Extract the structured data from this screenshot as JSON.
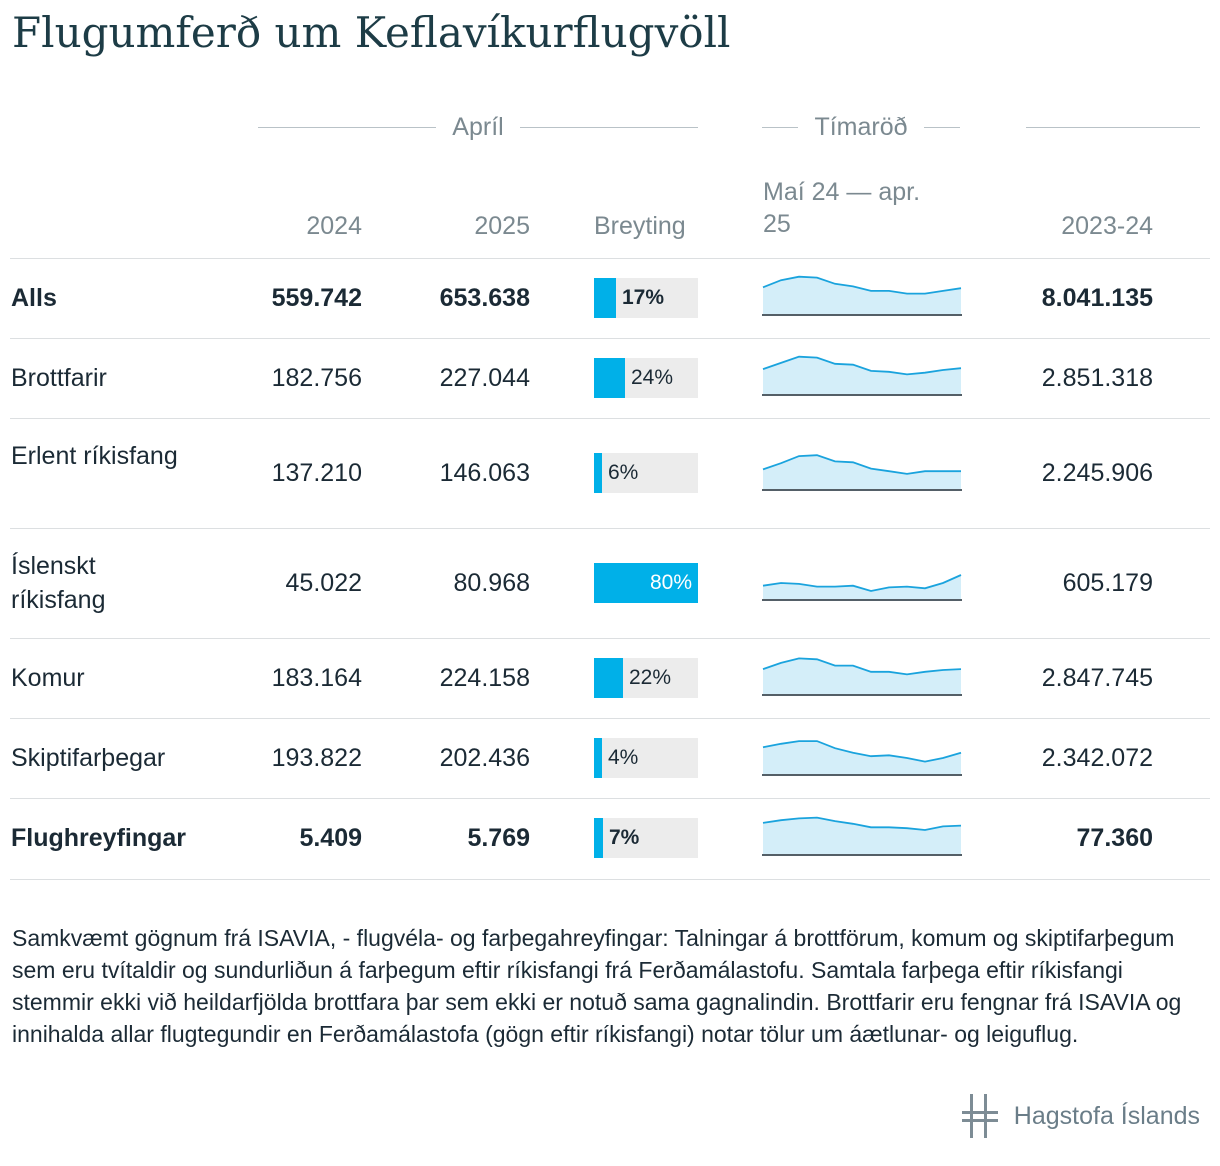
{
  "title": "Flugumferð um Keflavíkurflugvöll",
  "headers": {
    "group_april": "Apríl",
    "group_timeseries": "Tímaröð",
    "col_2024": "2024",
    "col_2025": "2025",
    "col_change": "Breyting",
    "col_series_line1": "Maí 24 — apr.",
    "col_series_line2": "25",
    "col_total": "2023-24"
  },
  "colors": {
    "bar": "#00b0e8",
    "bar_bg": "#ececec",
    "spark_line": "#1aa3dd",
    "spark_fill": "#d4eef9"
  },
  "chart_data": {
    "type": "table",
    "columns": [
      "",
      "2024",
      "2025",
      "Breyting",
      "Maí 24 — apr. 25",
      "2023-24"
    ],
    "rows": [
      {
        "label": "Alls",
        "bold": true,
        "v2024": "559.742",
        "v2025": "653.638",
        "change_label": "17%",
        "change": 17,
        "total": "8.041.135",
        "series": [
          70,
          78,
          82,
          81,
          74,
          71,
          66,
          66,
          63,
          63,
          66,
          69
        ]
      },
      {
        "label": "Brottfarir",
        "bold": false,
        "v2024": "182.756",
        "v2025": "227.044",
        "change_label": "24%",
        "change": 24,
        "total": "2.851.318",
        "series": [
          68,
          75,
          82,
          81,
          74,
          73,
          66,
          65,
          62,
          64,
          67,
          69
        ]
      },
      {
        "label": "Erlent ríkisfang",
        "bold": false,
        "v2024": "137.210",
        "v2025": "146.063",
        "change_label": "6%",
        "change": 6,
        "total": "2.245.906",
        "series": [
          62,
          69,
          77,
          78,
          71,
          70,
          63,
          60,
          57,
          60,
          60,
          60
        ]
      },
      {
        "label": "Íslenskt ríkisfang",
        "bold": false,
        "v2024": "45.022",
        "v2025": "80.968",
        "change_label": "80%",
        "change": 80,
        "total": "605.179",
        "series": [
          55,
          58,
          57,
          54,
          54,
          55,
          49,
          53,
          54,
          52,
          58,
          67
        ]
      },
      {
        "label": "Komur",
        "bold": false,
        "v2024": "183.164",
        "v2025": "224.158",
        "change_label": "22%",
        "change": 22,
        "total": "2.847.745",
        "series": [
          68,
          75,
          80,
          79,
          72,
          72,
          65,
          65,
          62,
          65,
          67,
          68
        ]
      },
      {
        "label": "Skiptifarþegar",
        "bold": false,
        "v2024": "193.822",
        "v2025": "202.436",
        "change_label": "4%",
        "change": 4,
        "total": "2.342.072",
        "series": [
          70,
          74,
          77,
          77,
          69,
          64,
          60,
          61,
          58,
          54,
          58,
          64
        ]
      },
      {
        "label": "Flughreyfingar",
        "bold": true,
        "v2024": "5.409",
        "v2025": "5.769",
        "change_label": "7%",
        "change": 7,
        "total": "77.360",
        "series": [
          75,
          78,
          80,
          81,
          77,
          74,
          70,
          70,
          69,
          67,
          71,
          72
        ]
      }
    ],
    "change_axis_max": 80
  },
  "footnote": "Samkvæmt gögnum frá ISAVIA, - flugvéla- og farþegahreyfingar: Talningar á brottförum, komum og skiptifarþegum sem eru tvítaldir og sundurliðun á farþegum eftir ríkisfangi frá Ferðamálastofu. Samtala farþega eftir ríkisfangi stemmir ekki við heildarfjölda brottfara þar sem ekki er notuð sama gagnalindin. Brottfarir eru fengnar frá ISAVIA og innihalda allar flugtegundir en Ferðamálastofa (gögn eftir ríkisfangi) notar tölur um áætlunar- og leiguflug.",
  "logo": {
    "text": "Hagstofa Íslands"
  }
}
